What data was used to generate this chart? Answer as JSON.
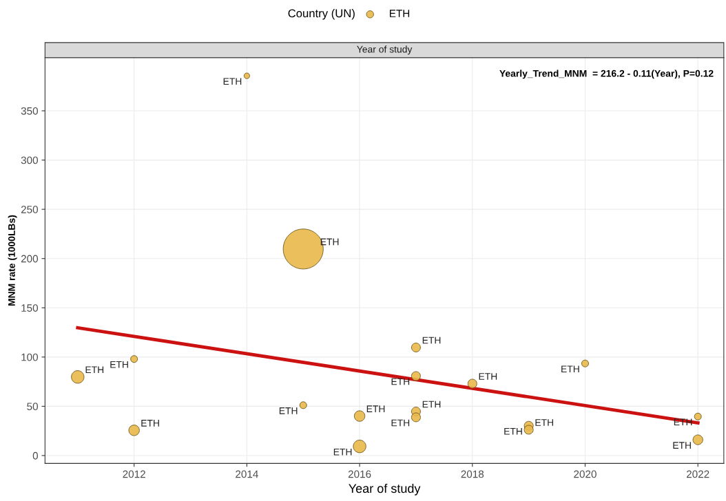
{
  "chart_data": {
    "type": "bubble",
    "subtitle": "Year of study",
    "xlabel": "Year of study",
    "ylabel": "MNM rate (1000LBs)",
    "legend_title": "Country (UN)",
    "legend": "top",
    "annotations": [
      "Yearly_Trend_MNM  = 216.2 - 0.11(Year), P=0.12"
    ],
    "xlim": [
      2010.42,
      2022.46
    ],
    "xticks": [
      2012,
      2014,
      2016,
      2018,
      2020,
      2022
    ],
    "ylim": [
      -8,
      404
    ],
    "yticks": [
      0,
      50,
      100,
      150,
      200,
      250,
      300,
      350
    ],
    "grid": true,
    "series": [
      {
        "name": "ETH",
        "color": "#e8b84a",
        "marker": "circle",
        "x": [
          2011,
          2012,
          2012,
          2014,
          2015,
          2015,
          2016,
          2016,
          2017,
          2017,
          2017,
          2017,
          2018,
          2019,
          2019,
          2020,
          2022,
          2022
        ],
        "values": [
          79.8,
          98,
          25.6,
          385.5,
          209.7,
          51.1,
          40.1,
          9.3,
          109.7,
          80.7,
          44.7,
          38.8,
          73,
          30.2,
          26.2,
          93.5,
          39.6,
          16
        ],
        "sizes": [
          0.1,
          0.03,
          0.07,
          0.02,
          1,
          0.03,
          0.07,
          0.1,
          0.05,
          0.05,
          0.05,
          0.05,
          0.05,
          0.05,
          0.05,
          0.03,
          0.03,
          0.06
        ],
        "value_labels": [
          "ETH",
          "ETH",
          "ETH",
          "ETH",
          "ETH",
          "ETH",
          "ETH",
          "ETH",
          "ETH",
          "ETH",
          "ETH",
          "ETH",
          "ETH",
          "ETH",
          "ETH",
          "ETH",
          "ETH",
          "ETH"
        ]
      },
      {
        "type": "line",
        "color": "#cc1111",
        "x": [
          2011,
          2022
        ],
        "values": [
          129.7,
          33.2
        ]
      }
    ]
  }
}
